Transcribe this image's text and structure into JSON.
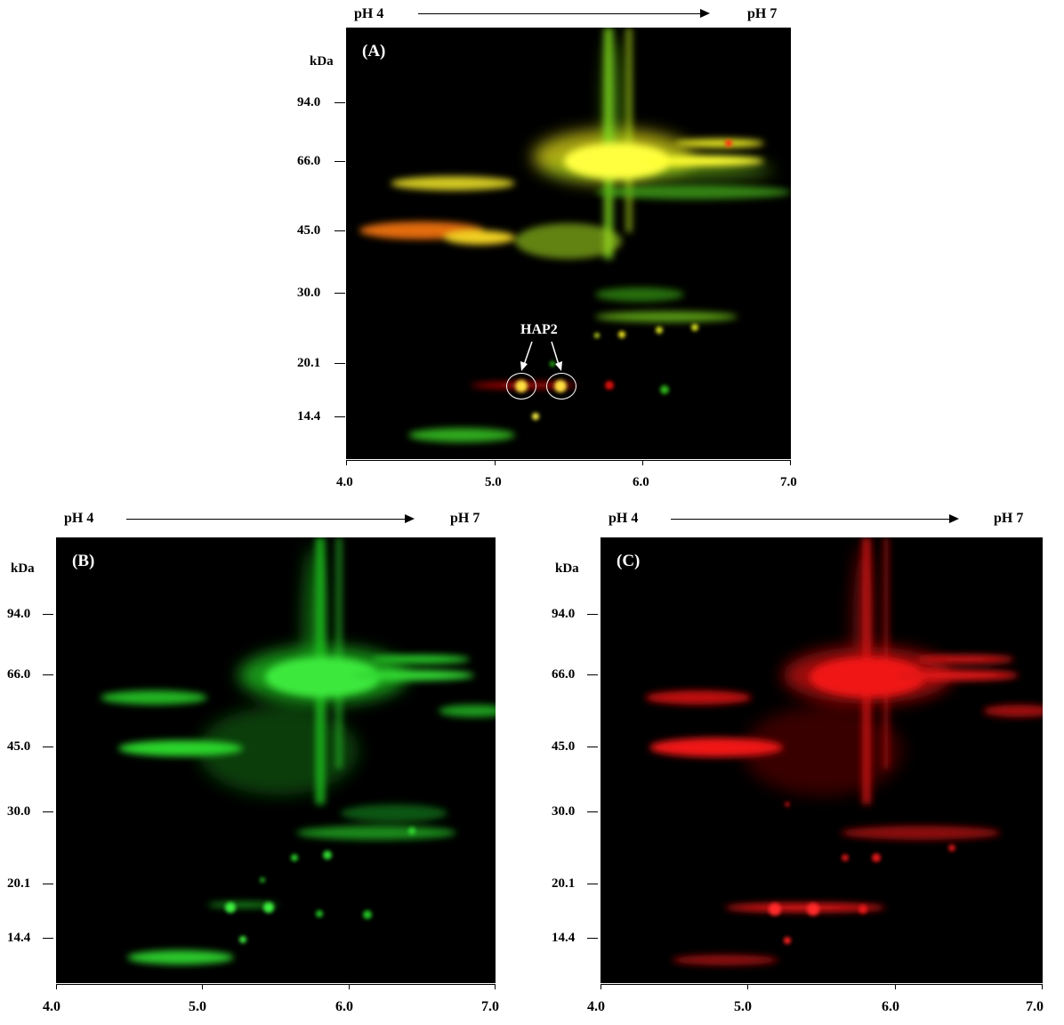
{
  "panels": [
    {
      "label": "(A)",
      "kda_label": "kDa",
      "ph_start": "pH 4",
      "ph_end": "pH 7",
      "mw_markers": [
        "94.0",
        "66.0",
        "45.0",
        "30.0",
        "20.1",
        "14.4"
      ],
      "ph_ticks": [
        "4.0",
        "5.0",
        "6.0",
        "7.0"
      ],
      "annotation": "HAP2",
      "stain": "merge"
    },
    {
      "label": "(B)",
      "kda_label": "kDa",
      "ph_start": "pH 4",
      "ph_end": "pH 7",
      "mw_markers": [
        "94.0",
        "66.0",
        "45.0",
        "30.0",
        "20.1",
        "14.4"
      ],
      "ph_ticks": [
        "4.0",
        "5.0",
        "6.0",
        "7.0"
      ],
      "stain": "green"
    },
    {
      "label": "(C)",
      "kda_label": "kDa",
      "ph_start": "pH 4",
      "ph_end": "pH 7",
      "mw_markers": [
        "94.0",
        "66.0",
        "45.0",
        "30.0",
        "20.1",
        "14.4"
      ],
      "ph_ticks": [
        "4.0",
        "5.0",
        "6.0",
        "7.0"
      ],
      "stain": "red"
    }
  ],
  "colors": {
    "green": "#2bd62b",
    "red": "#e01010",
    "yellow": "#f5f020",
    "background": "#000000"
  }
}
